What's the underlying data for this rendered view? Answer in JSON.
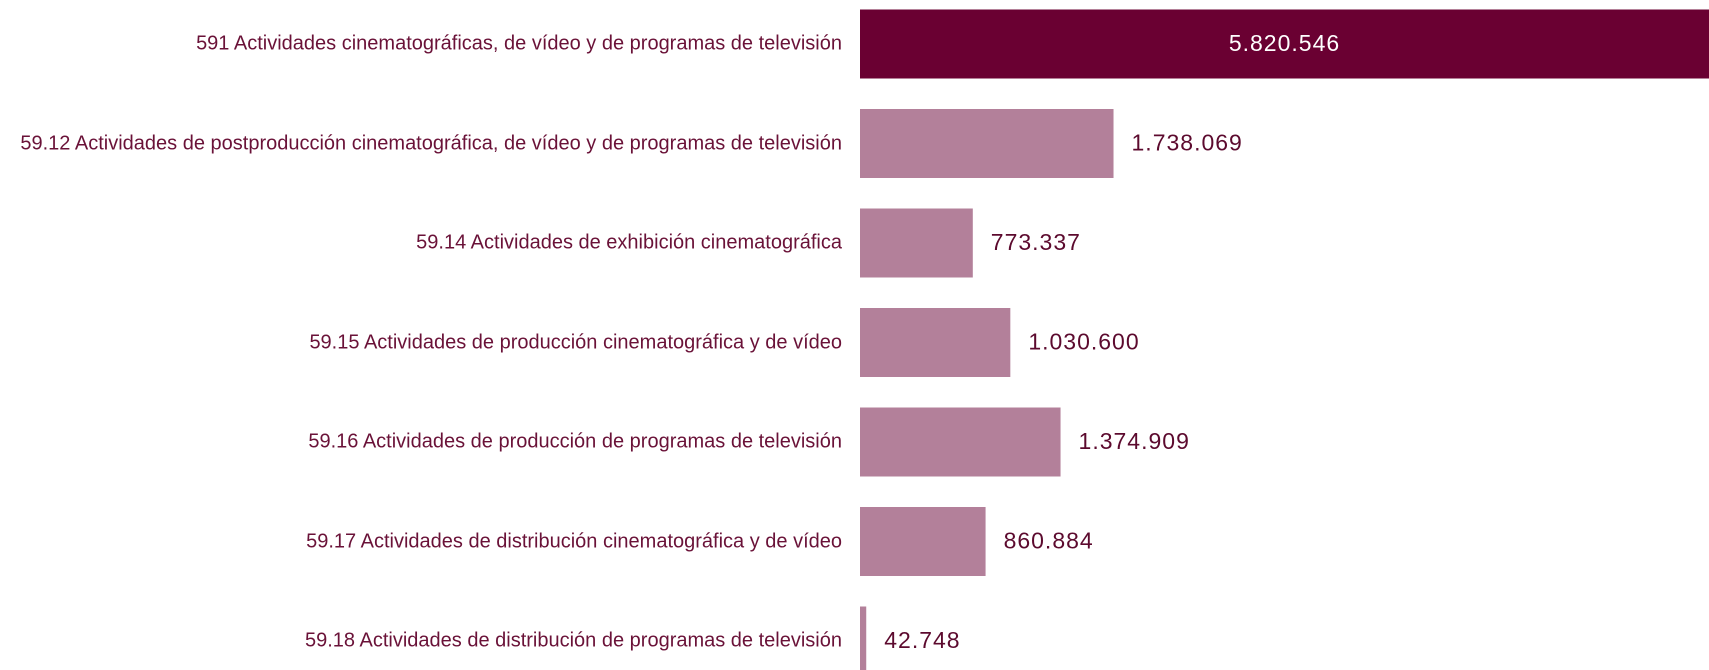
{
  "chart_data": {
    "type": "bar",
    "orientation": "horizontal",
    "categories": [
      "591 Actividades cinematográficas, de vídeo y de programas de televisión",
      "59.12 Actividades de postproducción cinematográfica, de vídeo y de programas de televisión",
      "59.14 Actividades de exhibición cinematográfica",
      "59.15 Actividades de producción cinematográfica y de vídeo",
      "59.16 Actividades de producción de programas de televisión",
      "59.17 Actividades de distribución cinematográfica y de vídeo",
      "59.18 Actividades de distribución de programas de televisión"
    ],
    "values": [
      5820546,
      1738069,
      773337,
      1030600,
      1374909,
      860884,
      42748
    ],
    "value_labels": [
      "5.820.546",
      "1.738.069",
      "773.337",
      "1.030.600",
      "1.374.909",
      "860.884",
      "42.748"
    ],
    "colors": [
      "#6a0032",
      "#b3809a",
      "#b3809a",
      "#b3809a",
      "#b3809a",
      "#b3809a",
      "#b3809a"
    ]
  }
}
